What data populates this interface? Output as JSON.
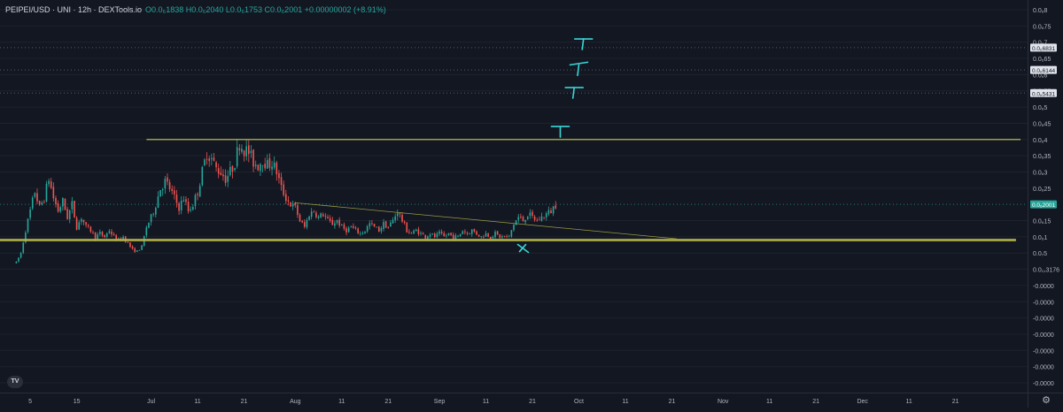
{
  "header": {
    "symbol": "PEIPEI/USD · UNI · 12h · DEXTools.io",
    "ohlc": "O0.0₆1838 H0.0₆2040 L0.0₆1753 C0.0₆2001 +0.00000002 (+8.91%)"
  },
  "branding": {
    "logo_text": "TV"
  },
  "icons": {
    "settings": "gear-icon"
  },
  "colors": {
    "background": "#131722",
    "up": "#26a69a",
    "down": "#ef5350",
    "support_line": "#b8b84a",
    "annotation": "#3ad6d6",
    "grid": "#1e222d",
    "axis_text": "#b2b5be"
  },
  "chart_data": {
    "type": "candlestick",
    "title": "PEIPEI/USD · UNI · 12h · DEXTools.io",
    "xlabel": "",
    "ylabel": "",
    "y_ticks": [
      {
        "label": "0.0₆8",
        "value": 0.8
      },
      {
        "label": "0.0₆75",
        "value": 0.75
      },
      {
        "label": "0.0₆7",
        "value": 0.7
      },
      {
        "label": "0.0₆65",
        "value": 0.65
      },
      {
        "label": "0.0₆6",
        "value": 0.6
      },
      {
        "label": "0.0₆55",
        "value": 0.55
      },
      {
        "label": "0.0₆5",
        "value": 0.5
      },
      {
        "label": "0.0₆45",
        "value": 0.45
      },
      {
        "label": "0.0₆4",
        "value": 0.4
      },
      {
        "label": "0.0₆35",
        "value": 0.35
      },
      {
        "label": "0.0₆3",
        "value": 0.3
      },
      {
        "label": "0.0₆25",
        "value": 0.25
      },
      {
        "label": "0.0₆15",
        "value": 0.15
      },
      {
        "label": "0.0₆1",
        "value": 0.1
      },
      {
        "label": "0.0₇5",
        "value": 0.05
      },
      {
        "label": "0.0₁₁3176",
        "value": 0.0
      },
      {
        "label": "-0.0000",
        "value": -0.05
      },
      {
        "label": "-0.0000",
        "value": -0.1
      },
      {
        "label": "-0.0000",
        "value": -0.15
      },
      {
        "label": "-0.0000",
        "value": -0.2
      },
      {
        "label": "-0.0000",
        "value": -0.25
      },
      {
        "label": "-0.0000",
        "value": -0.3
      },
      {
        "label": "-0.0000",
        "value": -0.35
      }
    ],
    "y_badges": [
      {
        "label": "0.0₆6831",
        "value": 0.6831
      },
      {
        "label": "0.0₆6144",
        "value": 0.6144
      },
      {
        "label": "0.0₆5431",
        "value": 0.5431
      },
      {
        "label": "0.0₆2001",
        "value": 0.2001,
        "current": true
      }
    ],
    "x_ticks": [
      {
        "label": "5",
        "day": 5
      },
      {
        "label": "15",
        "day": 15
      },
      {
        "label": "Jul",
        "day": 31
      },
      {
        "label": "11",
        "day": 41
      },
      {
        "label": "21",
        "day": 51
      },
      {
        "label": "Aug",
        "day": 62
      },
      {
        "label": "11",
        "day": 72
      },
      {
        "label": "21",
        "day": 82
      },
      {
        "label": "Sep",
        "day": 93
      },
      {
        "label": "11",
        "day": 103
      },
      {
        "label": "21",
        "day": 113
      },
      {
        "label": "Oct",
        "day": 123
      },
      {
        "label": "11",
        "day": 133
      },
      {
        "label": "21",
        "day": 143
      },
      {
        "label": "Nov",
        "day": 154
      },
      {
        "label": "11",
        "day": 164
      },
      {
        "label": "21",
        "day": 174
      },
      {
        "label": "Dec",
        "day": 184
      },
      {
        "label": "11",
        "day": 194
      },
      {
        "label": "21",
        "day": 204
      }
    ],
    "ylim": [
      -0.38,
      0.83
    ],
    "xlim": [
      -1.5,
      219.5
    ],
    "close_path": [
      [
        2,
        0.02
      ],
      [
        3,
        0.05
      ],
      [
        4,
        0.12
      ],
      [
        5,
        0.18
      ],
      [
        6,
        0.24
      ],
      [
        7,
        0.19
      ],
      [
        8,
        0.22
      ],
      [
        9,
        0.28
      ],
      [
        10,
        0.22
      ],
      [
        11,
        0.18
      ],
      [
        12,
        0.21
      ],
      [
        13,
        0.16
      ],
      [
        14,
        0.2
      ],
      [
        15,
        0.13
      ],
      [
        16,
        0.16
      ],
      [
        17,
        0.13
      ],
      [
        18,
        0.12
      ],
      [
        19,
        0.1
      ],
      [
        20,
        0.11
      ],
      [
        21,
        0.1
      ],
      [
        22,
        0.12
      ],
      [
        23,
        0.1
      ],
      [
        24,
        0.09
      ],
      [
        25,
        0.1
      ],
      [
        26,
        0.08
      ],
      [
        27,
        0.06
      ],
      [
        28,
        0.055
      ],
      [
        29,
        0.07
      ],
      [
        30,
        0.13
      ],
      [
        31,
        0.16
      ],
      [
        32,
        0.2
      ],
      [
        33,
        0.25
      ],
      [
        34,
        0.27
      ],
      [
        35,
        0.25
      ],
      [
        36,
        0.22
      ],
      [
        37,
        0.19
      ],
      [
        38,
        0.22
      ],
      [
        39,
        0.18
      ],
      [
        40,
        0.2
      ],
      [
        41,
        0.24
      ],
      [
        42,
        0.3
      ],
      [
        43,
        0.36
      ],
      [
        44,
        0.34
      ],
      [
        45,
        0.31
      ],
      [
        46,
        0.3
      ],
      [
        47,
        0.28
      ],
      [
        48,
        0.3
      ],
      [
        49,
        0.33
      ],
      [
        50,
        0.39
      ],
      [
        51,
        0.37
      ],
      [
        52,
        0.36
      ],
      [
        53,
        0.33
      ],
      [
        54,
        0.32
      ],
      [
        55,
        0.34
      ],
      [
        56,
        0.32
      ],
      [
        57,
        0.33
      ],
      [
        58,
        0.3
      ],
      [
        59,
        0.25
      ],
      [
        60,
        0.22
      ],
      [
        61,
        0.2
      ],
      [
        62,
        0.19
      ],
      [
        63,
        0.15
      ],
      [
        64,
        0.13
      ],
      [
        65,
        0.17
      ],
      [
        66,
        0.18
      ],
      [
        67,
        0.16
      ],
      [
        68,
        0.17
      ],
      [
        69,
        0.15
      ],
      [
        70,
        0.14
      ],
      [
        71,
        0.15
      ],
      [
        72,
        0.13
      ],
      [
        73,
        0.12
      ],
      [
        74,
        0.13
      ],
      [
        75,
        0.12
      ],
      [
        76,
        0.11
      ],
      [
        77,
        0.12
      ],
      [
        78,
        0.14
      ],
      [
        79,
        0.13
      ],
      [
        80,
        0.12
      ],
      [
        81,
        0.14
      ],
      [
        82,
        0.13
      ],
      [
        83,
        0.15
      ],
      [
        84,
        0.18
      ],
      [
        85,
        0.15
      ],
      [
        86,
        0.12
      ],
      [
        87,
        0.11
      ],
      [
        88,
        0.12
      ],
      [
        89,
        0.11
      ],
      [
        90,
        0.1
      ],
      [
        91,
        0.11
      ],
      [
        92,
        0.1
      ],
      [
        93,
        0.11
      ],
      [
        94,
        0.1
      ],
      [
        95,
        0.11
      ],
      [
        96,
        0.1
      ],
      [
        97,
        0.1
      ],
      [
        98,
        0.12
      ],
      [
        99,
        0.11
      ],
      [
        100,
        0.12
      ],
      [
        101,
        0.11
      ],
      [
        102,
        0.1
      ],
      [
        103,
        0.11
      ],
      [
        104,
        0.1
      ],
      [
        105,
        0.11
      ],
      [
        106,
        0.1
      ],
      [
        107,
        0.1
      ],
      [
        108,
        0.1
      ],
      [
        109,
        0.14
      ],
      [
        110,
        0.16
      ],
      [
        111,
        0.15
      ],
      [
        112,
        0.17
      ],
      [
        113,
        0.16
      ],
      [
        114,
        0.15
      ],
      [
        115,
        0.16
      ],
      [
        116,
        0.17
      ],
      [
        117,
        0.18
      ],
      [
        118,
        0.2
      ]
    ],
    "lines": [
      {
        "name": "resistance",
        "kind": "horizontal",
        "x0": 30,
        "x1": 218,
        "y": 0.4
      },
      {
        "name": "support",
        "kind": "horizontal",
        "x0": -4,
        "x1": 217,
        "y": 0.09
      },
      {
        "name": "trendline",
        "kind": "segment",
        "x0": 62,
        "y0": 0.205,
        "x1": 144,
        "y1": 0.094
      }
    ],
    "dotted_levels": [
      0.6831,
      0.6144,
      0.5431,
      0.2001
    ],
    "targets": [
      {
        "x": 119,
        "y": 0.44
      },
      {
        "x": 122,
        "y": 0.56
      },
      {
        "x": 123,
        "y": 0.63
      },
      {
        "x": 124,
        "y": 0.71
      }
    ],
    "cross_marker": {
      "x": 111,
      "y": 0.06
    }
  }
}
